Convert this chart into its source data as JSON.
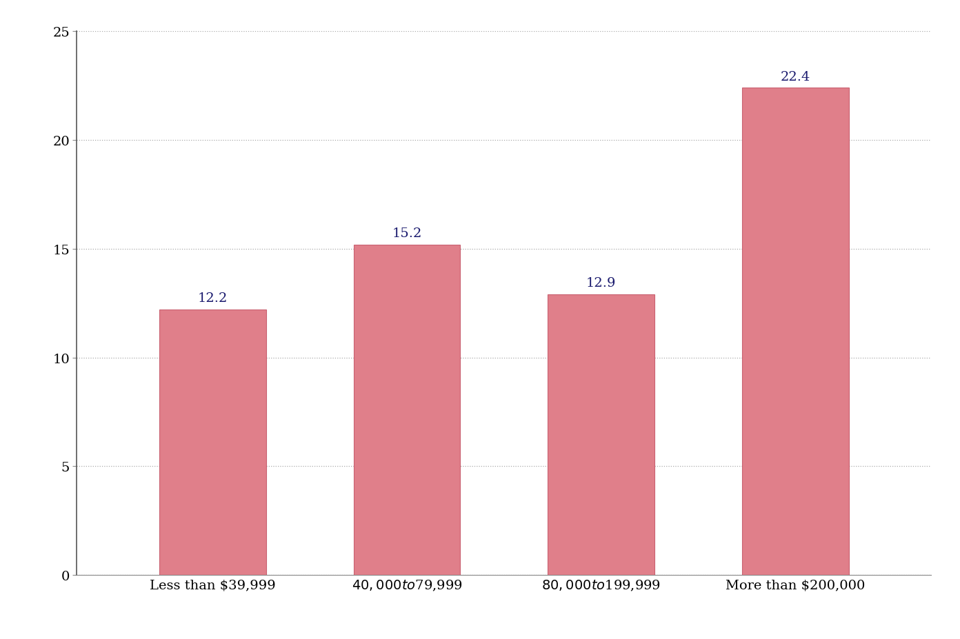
{
  "categories": [
    "Less than $39,999",
    "$40,000 to $79,999",
    "$80,000 to $199,999",
    "More than $200,000"
  ],
  "values": [
    12.2,
    15.2,
    12.9,
    22.4
  ],
  "bar_color": "#e07f8a",
  "bar_edge_color": "#c96070",
  "ylim": [
    0,
    25
  ],
  "yticks": [
    0,
    5,
    10,
    15,
    20,
    25
  ],
  "grid_color": "#aaaaaa",
  "tick_fontsize": 14,
  "value_label_fontsize": 14,
  "value_label_color": "#1a1a6e",
  "background_color": "#ffffff",
  "bar_width": 0.55
}
